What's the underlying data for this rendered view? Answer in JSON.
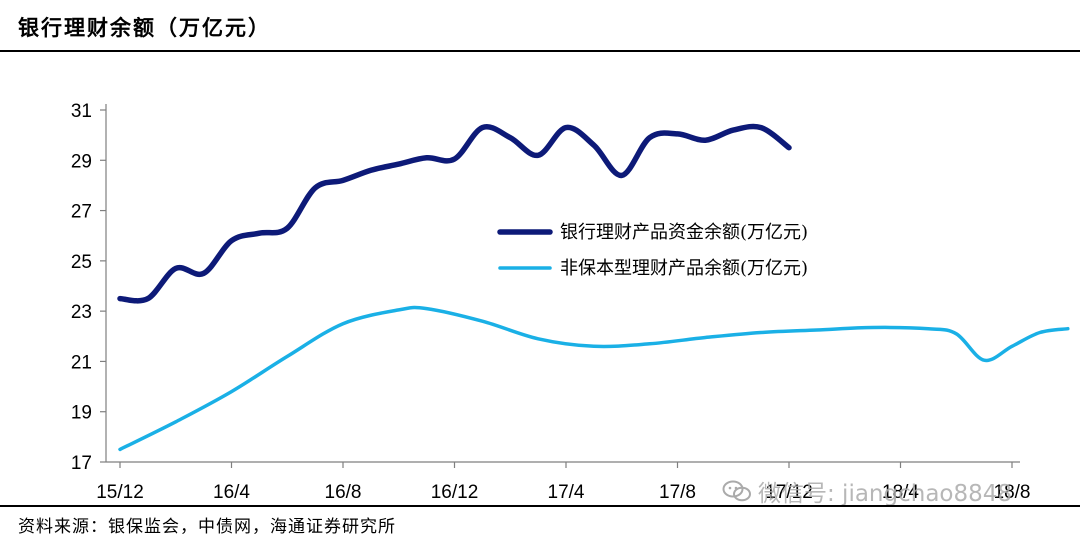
{
  "title": "银行理财余额（万亿元）",
  "source": "资料来源：银保监会，中债网，海通证券研究所",
  "watermark": "微信号: jiangchao8848",
  "chart_data": {
    "type": "line",
    "ylim": [
      17,
      31
    ],
    "yticks": [
      17,
      19,
      21,
      23,
      25,
      27,
      29,
      31
    ],
    "xticks": [
      "15/12",
      "16/4",
      "16/8",
      "16/12",
      "17/4",
      "17/8",
      "17/12",
      "18/4",
      "18/8"
    ],
    "legend_position": "center-right",
    "series": [
      {
        "name": "银行理财产品资金余额(万亿元)",
        "color": "#0d1a78",
        "points": [
          [
            0,
            23.5
          ],
          [
            0.5,
            23.5
          ],
          [
            1,
            24.7
          ],
          [
            1.5,
            24.5
          ],
          [
            2,
            25.8
          ],
          [
            2.5,
            26.1
          ],
          [
            3,
            26.3
          ],
          [
            3.5,
            27.9
          ],
          [
            4,
            28.2
          ],
          [
            4.5,
            28.6
          ],
          [
            5,
            28.85
          ],
          [
            5.5,
            29.1
          ],
          [
            6,
            29.05
          ],
          [
            6.5,
            30.3
          ],
          [
            7,
            29.9
          ],
          [
            7.5,
            29.2
          ],
          [
            8,
            30.3
          ],
          [
            8.5,
            29.6
          ],
          [
            9,
            28.4
          ],
          [
            9.5,
            29.9
          ],
          [
            10,
            30.05
          ],
          [
            10.5,
            29.8
          ],
          [
            11,
            30.2
          ],
          [
            11.5,
            30.3
          ],
          [
            12,
            29.5
          ]
        ]
      },
      {
        "name": "非保本型理财产品余额(万亿元)",
        "color": "#1ab0e6",
        "points": [
          [
            0,
            17.5
          ],
          [
            2,
            18.6
          ],
          [
            4,
            19.8
          ],
          [
            6,
            21.2
          ],
          [
            8,
            22.5
          ],
          [
            10,
            23.05
          ],
          [
            11,
            23.1
          ],
          [
            13,
            22.6
          ],
          [
            15,
            21.9
          ],
          [
            17,
            21.6
          ],
          [
            19,
            21.7
          ],
          [
            21,
            21.95
          ],
          [
            23,
            22.15
          ],
          [
            25,
            22.25
          ],
          [
            27,
            22.35
          ],
          [
            29,
            22.3
          ],
          [
            30,
            22.1
          ],
          [
            31,
            21.05
          ],
          [
            32,
            21.6
          ],
          [
            33,
            22.15
          ],
          [
            34,
            22.3
          ]
        ]
      }
    ]
  }
}
